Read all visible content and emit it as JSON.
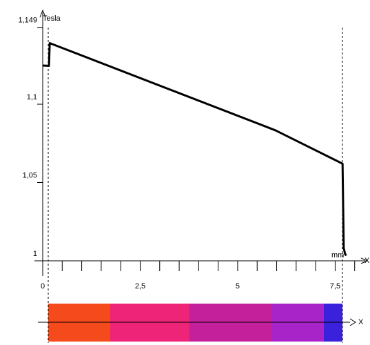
{
  "chart_data": {
    "type": "line",
    "y_label": "Tesla",
    "x_label": "mm",
    "x_arrow_label": "X",
    "strip_axis_label": "X",
    "x": [
      0,
      0.16,
      0.18,
      5.97,
      7.69,
      7.72,
      7.76,
      7.79
    ],
    "values": [
      1.1247,
      1.1245,
      1.139,
      1.0833,
      1.062,
      1.008,
      1.004,
      1.0035
    ],
    "color": "#000000",
    "xlim": [
      0,
      8.27
    ],
    "ylim": [
      1,
      1.149
    ],
    "xticks": [
      0,
      {
        "value": 2.5,
        "label": "2,5"
      },
      5,
      {
        "value": 7.5,
        "label": "7,5"
      }
    ],
    "xminorticks": [
      0.5,
      1,
      1.5,
      2,
      3,
      3.5,
      4,
      4.5,
      5.5,
      6,
      6.5,
      7,
      8
    ],
    "yticks": [
      1,
      {
        "value": 1.05,
        "label": "1,05"
      },
      {
        "value": 1.1,
        "label": "1,1"
      },
      {
        "value": 1.149,
        "label": "1,149"
      }
    ]
  }
}
